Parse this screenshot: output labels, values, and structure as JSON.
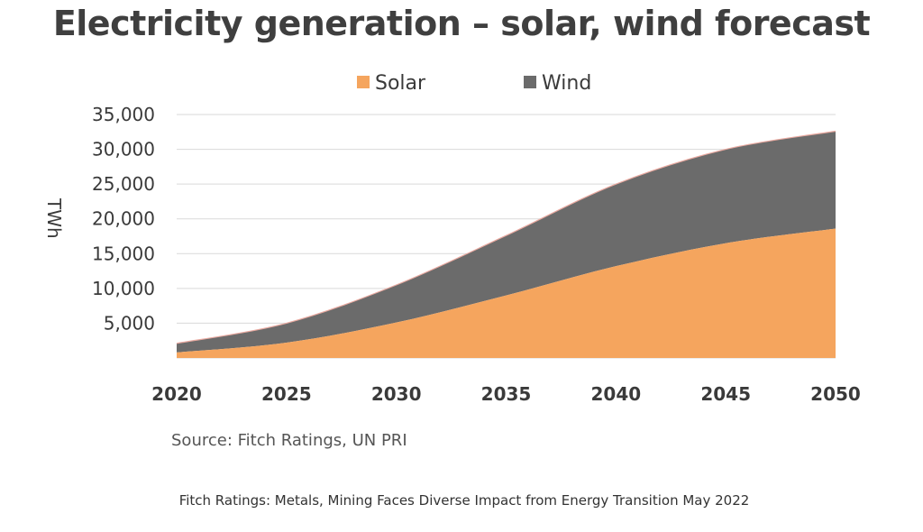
{
  "chart_data": {
    "type": "area",
    "stacked": true,
    "title": "Electricity generation – solar, wind forecast",
    "ylabel": "TWh",
    "xlabel": "",
    "x": [
      2020,
      2025,
      2030,
      2035,
      2040,
      2045,
      2050
    ],
    "x_tick_labels": [
      "2020",
      "2025",
      "2030",
      "2035",
      "2040",
      "2045",
      "2050"
    ],
    "y_tick_values": [
      5000,
      10000,
      15000,
      20000,
      25000,
      30000,
      35000
    ],
    "y_tick_labels": [
      "5,000",
      "10,000",
      "15,000",
      "20,000",
      "25,000",
      "30,000",
      "35,000"
    ],
    "ylim": [
      0,
      35000
    ],
    "xlim": [
      2020,
      2050
    ],
    "grid": true,
    "legend_position": "top-center",
    "series": [
      {
        "name": "Solar",
        "color": "#f5a55e",
        "values": [
          800,
          2200,
          5100,
          9000,
          13200,
          16500,
          18600
        ]
      },
      {
        "name": "Wind",
        "color": "#6b6b6b",
        "values": [
          1300,
          2800,
          5400,
          8600,
          11800,
          13500,
          14000
        ]
      }
    ]
  },
  "source": "Source: Fitch Ratings, UN PRI",
  "footer": "Fitch Ratings: Metals, Mining Faces Diverse Impact from Energy Transition May 2022"
}
